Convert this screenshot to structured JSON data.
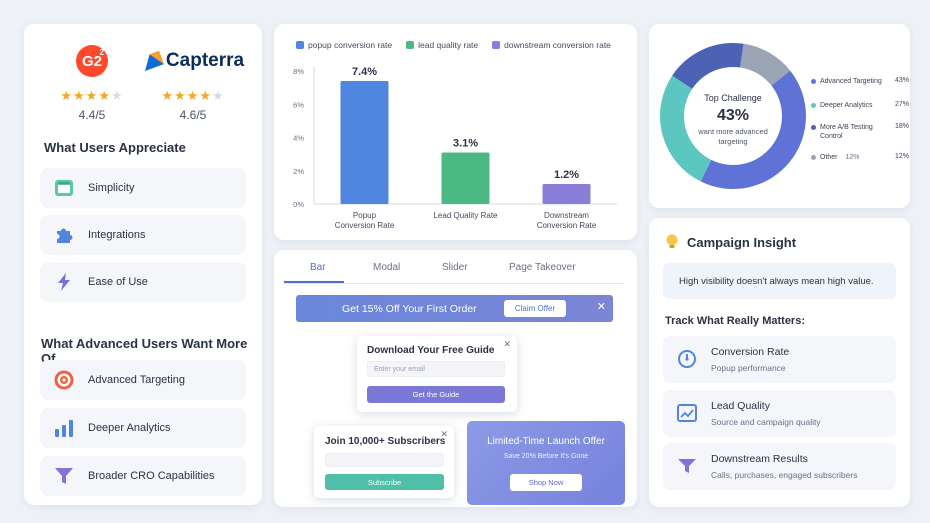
{
  "ratings": [
    {
      "brand": "G2",
      "brand_sup": "2",
      "stars": 4.4,
      "score": "4.4/5"
    },
    {
      "brand": "Capterra",
      "stars": 4.6,
      "score": "4.6/5"
    }
  ],
  "appreciate": {
    "title": "What Users Appreciate",
    "items": [
      {
        "label": "Simplicity",
        "icon": "window-icon"
      },
      {
        "label": "Integrations",
        "icon": "puzzle-icon"
      },
      {
        "label": "Ease of Use",
        "icon": "lightning-icon"
      }
    ]
  },
  "advanced": {
    "title": "What Advanced Users Want More Of",
    "items": [
      {
        "label": "Advanced Targeting",
        "icon": "target-icon"
      },
      {
        "label": "Deeper Analytics",
        "icon": "bar-chart-icon"
      },
      {
        "label": "Broader CRO Capabilities",
        "icon": "funnel-icon"
      }
    ]
  },
  "chart_data": {
    "type": "bar",
    "title": "",
    "categories": [
      "Popup Conversion Rate",
      "Lead Quality Rate",
      "Downstream Conversion Rate"
    ],
    "category_labels": [
      [
        "Popup",
        "Conversion Rate"
      ],
      [
        "Lead Quality Rate"
      ],
      [
        "Downstream",
        "Conversion Rate"
      ]
    ],
    "series": [
      {
        "name": "popup conversion rate",
        "values": [
          7.4,
          null,
          null
        ],
        "color": "#4f86e0"
      },
      {
        "name": "lead quality rate",
        "values": [
          null,
          3.1,
          null
        ],
        "color": "#4cb985"
      },
      {
        "name": "downstream conversion rate",
        "values": [
          null,
          null,
          1.2
        ],
        "color": "#8a7ed8"
      }
    ],
    "value_labels": [
      "7.4%",
      "3.1%",
      "1.2%"
    ],
    "yticks": [
      "0%",
      "2%",
      "4%",
      "6%",
      "8%"
    ],
    "ylim": [
      0,
      8
    ],
    "legend": "top",
    "grid": false
  },
  "donut": {
    "center_title": "Top Challenge",
    "center_value": "43%",
    "center_sub": [
      "want more advanced",
      "targeting"
    ],
    "segments": [
      {
        "label": "Advanced Targeting",
        "pct_label": "43%",
        "value": 43,
        "color": "#5f73d6"
      },
      {
        "label": "Deeper Analytics",
        "pct_label": "27%",
        "value": 27,
        "color": "#5cc6c0"
      },
      {
        "label": "More A/B Testing Control",
        "pct_label": "18%",
        "value": 18,
        "color": "#4c63b5"
      },
      {
        "label": "Other",
        "pct_label": "12%",
        "value": 12,
        "color": "#9aa4b5"
      }
    ],
    "other_inline": "12%"
  },
  "popups": {
    "tabs": [
      "Bar",
      "Modal",
      "Slider",
      "Page Takeover"
    ],
    "active_tab": "Bar",
    "bar": {
      "text": "Get 15% Off Your First Order",
      "button": "Claim Offer",
      "close": "✕"
    },
    "modal": {
      "title": "Download Your Free Guide",
      "placeholder": "Enter your email",
      "button": "Get the Guide",
      "close": "✕"
    },
    "slider": {
      "title": "Join 10,000+ Subscribers",
      "placeholder": "",
      "button": "Subscribe",
      "close": "✕"
    },
    "takeover": {
      "title": "Limited-Time Launch Offer",
      "sub": "Save 20% Before It's Gone",
      "button": "Shop Now"
    }
  },
  "insight": {
    "title": "Campaign Insight",
    "note": "High visibility doesn't always mean high value.",
    "track_title": "Track What Really Matters:",
    "metrics": [
      {
        "name": "Conversion Rate",
        "sub": "Popup performance",
        "icon": "gauge-icon"
      },
      {
        "name": "Lead Quality",
        "sub": "Source and campaign quality",
        "icon": "chart-icon"
      },
      {
        "name": "Downstream Results",
        "sub": "Calls, purchases, engaged subscribers",
        "icon": "funnel-icon"
      }
    ]
  }
}
